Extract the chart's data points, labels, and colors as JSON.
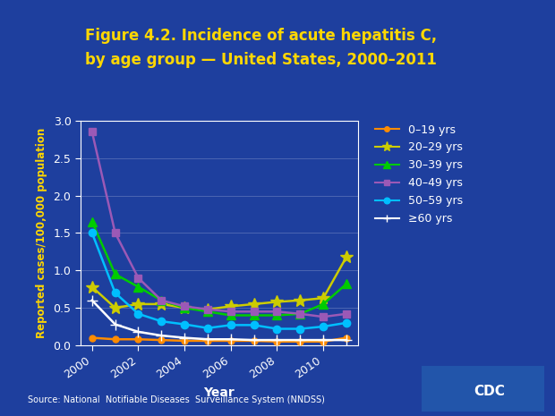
{
  "title_line1": "Figure 4.2. Incidence of acute hepatitis C,",
  "title_line2": "by age group — United States, 2000–2011",
  "xlabel": "Year",
  "ylabel": "Reported cases/100,000 population",
  "source": "Source: National  Notifiable Diseases  Surveillance System (NNDSS)",
  "years": [
    2000,
    2001,
    2002,
    2003,
    2004,
    2005,
    2006,
    2007,
    2008,
    2009,
    2010,
    2011
  ],
  "series": [
    {
      "label": "0–19 yrs",
      "color": "#FF8C00",
      "marker": "o",
      "markersize": 5,
      "linewidth": 1.8,
      "data": [
        0.1,
        0.08,
        0.08,
        0.07,
        0.06,
        0.06,
        0.06,
        0.06,
        0.05,
        0.05,
        0.05,
        0.1
      ]
    },
    {
      "label": "20–29 yrs",
      "color": "#CCCC00",
      "marker": "*",
      "markersize": 10,
      "linewidth": 1.8,
      "data": [
        0.78,
        0.5,
        0.55,
        0.55,
        0.5,
        0.48,
        0.52,
        0.55,
        0.58,
        0.6,
        0.63,
        1.18
      ]
    },
    {
      "label": "30–39 yrs",
      "color": "#00CC00",
      "marker": "^",
      "markersize": 7,
      "linewidth": 1.8,
      "data": [
        1.65,
        0.95,
        0.78,
        0.6,
        0.5,
        0.45,
        0.4,
        0.4,
        0.4,
        0.42,
        0.55,
        0.82
      ]
    },
    {
      "label": "40–49 yrs",
      "color": "#9B59B6",
      "marker": "s",
      "markersize": 6,
      "linewidth": 1.8,
      "data": [
        2.85,
        1.5,
        0.9,
        0.6,
        0.52,
        0.48,
        0.45,
        0.45,
        0.45,
        0.42,
        0.38,
        0.42
      ]
    },
    {
      "label": "50–59 yrs",
      "color": "#00BFFF",
      "marker": "o",
      "markersize": 6,
      "linewidth": 1.8,
      "data": [
        1.5,
        0.7,
        0.42,
        0.32,
        0.28,
        0.23,
        0.27,
        0.27,
        0.22,
        0.22,
        0.25,
        0.3
      ]
    },
    {
      "label": "≥60 yrs",
      "color": "#FFFFFF",
      "marker": "+",
      "markersize": 8,
      "linewidth": 1.8,
      "data": [
        0.6,
        0.28,
        0.18,
        0.13,
        0.1,
        0.08,
        0.08,
        0.07,
        0.07,
        0.07,
        0.07,
        0.07
      ]
    }
  ],
  "ylim": [
    0,
    3.0
  ],
  "yticks": [
    0,
    0.5,
    1,
    1.5,
    2,
    2.5,
    3
  ],
  "xticks": [
    2000,
    2002,
    2004,
    2006,
    2008,
    2010
  ],
  "bg_color": "#1B3BA0",
  "bg_inner": "#1E3F9E",
  "border_color": "#4A6FBF",
  "title_color": "#FFD700",
  "axis_label_color": "#FFD700",
  "tick_color": "#FFFFFF",
  "legend_text_color": "#FFFFFF",
  "source_color": "#FFFFFF",
  "xlabel_color": "#FFFFFF"
}
